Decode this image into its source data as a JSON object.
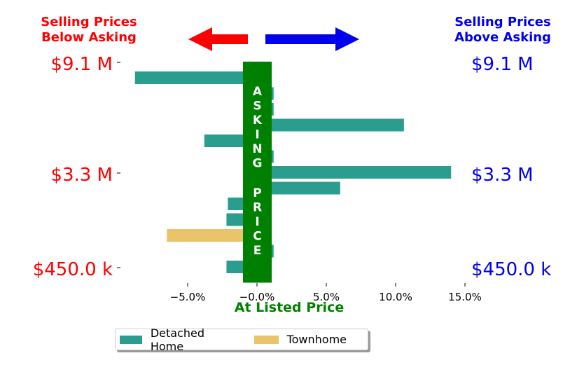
{
  "header": {
    "below_label": "Selling Prices\nBelow Asking",
    "above_label": "Selling Prices\nAbove Asking"
  },
  "colors": {
    "below": "#ff0000",
    "above": "#0000ee",
    "detached": "#2a9d8f",
    "townhome": "#e9c46a",
    "asking_bar": "#008000"
  },
  "asking_bar_text": "ASKING PRICE",
  "chart_data": {
    "type": "bar",
    "orientation": "horizontal",
    "xlabel": "At Listed Price",
    "xlim": [
      -10,
      17
    ],
    "x_ticks": [
      -5,
      0,
      5,
      10,
      15
    ],
    "x_tick_labels": [
      "−5.0%",
      "−0.0%",
      "5.0%",
      "10.0%",
      "15.0%"
    ],
    "y_ticks_left": [
      "$9.1 M",
      "$3.3 M",
      "$450.0 k"
    ],
    "y_ticks_right": [
      "$9.1 M",
      "$3.3 M",
      "$450.0 k"
    ],
    "series": [
      {
        "name": "Detached Home",
        "color": "#2a9d8f"
      },
      {
        "name": "Townhome",
        "color": "#e9c46a"
      }
    ],
    "bars": [
      {
        "series": "Detached Home",
        "value": -8.8
      },
      {
        "series": "Detached Home",
        "value": 1.2
      },
      {
        "series": "Detached Home",
        "value": 1.2
      },
      {
        "series": "Detached Home",
        "value": 10.6
      },
      {
        "series": "Detached Home",
        "value": -3.8
      },
      {
        "series": "Detached Home",
        "value": 1.2
      },
      {
        "series": "Detached Home",
        "value": 14.0
      },
      {
        "series": "Detached Home",
        "value": 6.0
      },
      {
        "series": "Detached Home",
        "value": -2.1
      },
      {
        "series": "Detached Home",
        "value": -2.2
      },
      {
        "series": "Townhome",
        "value": -6.5
      },
      {
        "series": "Detached Home",
        "value": 1.2
      },
      {
        "series": "Detached Home",
        "value": -2.2
      }
    ]
  }
}
